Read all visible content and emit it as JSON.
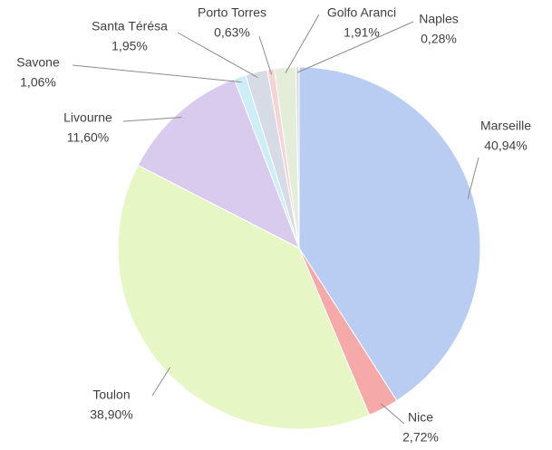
{
  "chart_data": {
    "type": "pie",
    "categories": [
      "Marseille",
      "Nice",
      "Toulon",
      "Livourne",
      "Savone",
      "Santa Térésa",
      "Porto Torres",
      "Golfo Aranci",
      "Naples"
    ],
    "values": [
      40.94,
      2.72,
      38.9,
      11.6,
      1.06,
      1.95,
      0.63,
      1.91,
      0.28
    ],
    "value_labels": [
      "40,94%",
      "2,72%",
      "38,90%",
      "11,60%",
      "1,06%",
      "1,95%",
      "0,63%",
      "1,91%",
      "0,28%"
    ],
    "colors": [
      "#b9cdf3",
      "#f6a9a9",
      "#e6f6c4",
      "#d9cbee",
      "#cdeef8",
      "#d6dbe6",
      "#f6d4d4",
      "#e3edd9",
      "#dadada"
    ]
  }
}
